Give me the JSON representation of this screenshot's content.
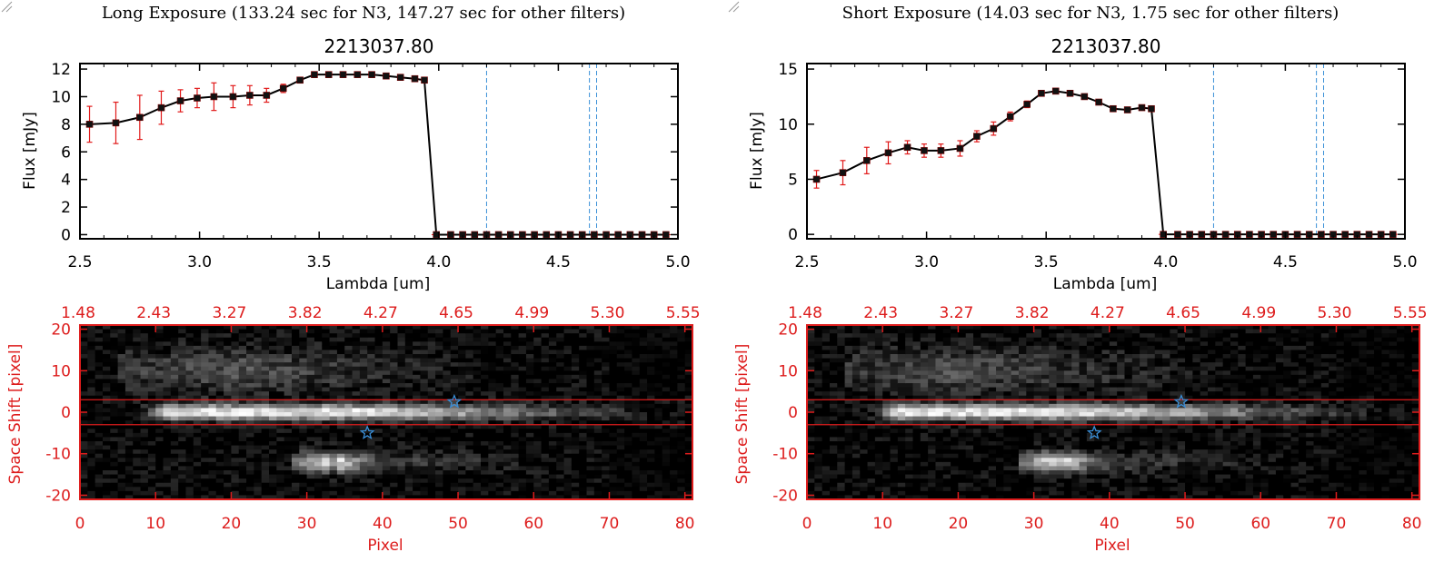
{
  "panels": [
    {
      "id": "long",
      "header": "Long Exposure (133.24 sec for N3, 147.27 sec for other filters)",
      "chart_data": [
        {
          "type": "line",
          "title": "2213037.80",
          "xlabel": "Lambda [um]",
          "ylabel": "Flux [mJy]",
          "xlim": [
            2.5,
            5.0
          ],
          "ylim": [
            -0.3,
            12.4
          ],
          "xticks": [
            "2.5",
            "3.0",
            "3.5",
            "4.0",
            "4.5",
            "5.0"
          ],
          "yticks": [
            "0",
            "2",
            "4",
            "6",
            "8",
            "10",
            "12"
          ],
          "vlines": [
            4.2,
            4.63,
            4.66
          ],
          "x": [
            2.54,
            2.65,
            2.75,
            2.84,
            2.92,
            2.99,
            3.06,
            3.14,
            3.21,
            3.28,
            3.35,
            3.42,
            3.48,
            3.54,
            3.6,
            3.66,
            3.72,
            3.78,
            3.84,
            3.9,
            3.94,
            3.99,
            4.05,
            4.1,
            4.15,
            4.2,
            4.25,
            4.3,
            4.35,
            4.4,
            4.45,
            4.5,
            4.55,
            4.6,
            4.65,
            4.7,
            4.75,
            4.8,
            4.85,
            4.9,
            4.95
          ],
          "y": [
            8.0,
            8.1,
            8.5,
            9.2,
            9.7,
            9.9,
            10.0,
            10.0,
            10.1,
            10.1,
            10.6,
            11.2,
            11.6,
            11.6,
            11.6,
            11.6,
            11.6,
            11.5,
            11.4,
            11.3,
            11.2,
            0,
            0,
            0,
            0,
            0,
            0,
            0,
            0,
            0,
            0,
            0,
            0,
            0,
            0,
            0,
            0,
            0,
            0,
            0,
            0
          ],
          "err": [
            1.3,
            1.5,
            1.6,
            1.2,
            0.8,
            0.7,
            1.0,
            0.8,
            0.7,
            0.5,
            0.3,
            0.2,
            0.2,
            0.2,
            0.1,
            0.1,
            0.1,
            0.1,
            0.1,
            0.1,
            0.1,
            0,
            0,
            0,
            0,
            0,
            0,
            0,
            0,
            0,
            0,
            0,
            0,
            0,
            0,
            0,
            0,
            0,
            0,
            0,
            0
          ]
        },
        {
          "type": "heatmap",
          "xlabel": "Pixel",
          "ylabel": "Space Shift [pixel]",
          "xlim": [
            0,
            81
          ],
          "ylim": [
            -21,
            21
          ],
          "xticks": [
            "0",
            "10",
            "20",
            "30",
            "40",
            "50",
            "60",
            "70",
            "80"
          ],
          "yticks": [
            "-20",
            "-10",
            "0",
            "10",
            "20"
          ],
          "top_ticks": [
            "1.48",
            "2.43",
            "3.27",
            "3.82",
            "4.27",
            "4.65",
            "4.99",
            "5.30",
            "5.55"
          ],
          "hlines": [
            3,
            -3
          ],
          "stars": [
            [
              49.5,
              2.5
            ],
            [
              38,
              -5
            ]
          ]
        }
      ]
    },
    {
      "id": "short",
      "header": "Short Exposure (14.03 sec for N3, 1.75 sec for other filters)",
      "chart_data": [
        {
          "type": "line",
          "title": "2213037.80",
          "xlabel": "Lambda [um]",
          "ylabel": "Flux [mJy]",
          "xlim": [
            2.5,
            5.0
          ],
          "ylim": [
            -0.4,
            15.5
          ],
          "xticks": [
            "2.5",
            "3.0",
            "3.5",
            "4.0",
            "4.5",
            "5.0"
          ],
          "yticks": [
            "0",
            "5",
            "10",
            "15"
          ],
          "vlines": [
            4.2,
            4.63,
            4.66
          ],
          "x": [
            2.54,
            2.65,
            2.75,
            2.84,
            2.92,
            2.99,
            3.06,
            3.14,
            3.21,
            3.28,
            3.35,
            3.42,
            3.48,
            3.54,
            3.6,
            3.66,
            3.72,
            3.78,
            3.84,
            3.9,
            3.94,
            3.99,
            4.05,
            4.1,
            4.15,
            4.2,
            4.25,
            4.3,
            4.35,
            4.4,
            4.45,
            4.5,
            4.55,
            4.6,
            4.65,
            4.7,
            4.75,
            4.8,
            4.85,
            4.9,
            4.95
          ],
          "y": [
            5.0,
            5.6,
            6.7,
            7.4,
            7.9,
            7.6,
            7.6,
            7.8,
            8.9,
            9.6,
            10.7,
            11.8,
            12.8,
            13.0,
            12.8,
            12.5,
            12.0,
            11.4,
            11.3,
            11.5,
            11.4,
            0,
            0,
            0,
            0,
            0,
            0,
            0,
            0,
            0,
            0,
            0,
            0,
            0,
            0,
            0,
            0,
            0,
            0,
            0,
            0
          ],
          "err": [
            0.8,
            1.1,
            1.2,
            1.0,
            0.6,
            0.6,
            0.6,
            0.7,
            0.5,
            0.6,
            0.4,
            0.3,
            0.2,
            0.2,
            0.2,
            0.2,
            0.2,
            0.2,
            0.2,
            0.2,
            0.2,
            0,
            0,
            0,
            0,
            0,
            0,
            0,
            0,
            0,
            0,
            0,
            0,
            0,
            0,
            0,
            0,
            0,
            0,
            0,
            0
          ]
        },
        {
          "type": "heatmap",
          "xlabel": "Pixel",
          "ylabel": "Space Shift [pixel]",
          "xlim": [
            0,
            81
          ],
          "ylim": [
            -21,
            21
          ],
          "xticks": [
            "0",
            "10",
            "20",
            "30",
            "40",
            "50",
            "60",
            "70",
            "80"
          ],
          "yticks": [
            "-20",
            "-10",
            "0",
            "10",
            "20"
          ],
          "top_ticks": [
            "1.48",
            "2.43",
            "3.27",
            "3.82",
            "4.27",
            "4.65",
            "4.99",
            "5.30",
            "5.55"
          ],
          "hlines": [
            3,
            -3
          ],
          "stars": [
            [
              49.5,
              2.5
            ],
            [
              38,
              -5
            ]
          ]
        }
      ]
    }
  ],
  "colors": {
    "axis_red": "#dd1c1c",
    "errorbar": "#e11a1a",
    "vline": "#3a8fd8",
    "star": "#3a8fd8",
    "zero_line": "#e11a1a",
    "line": "#000000"
  }
}
